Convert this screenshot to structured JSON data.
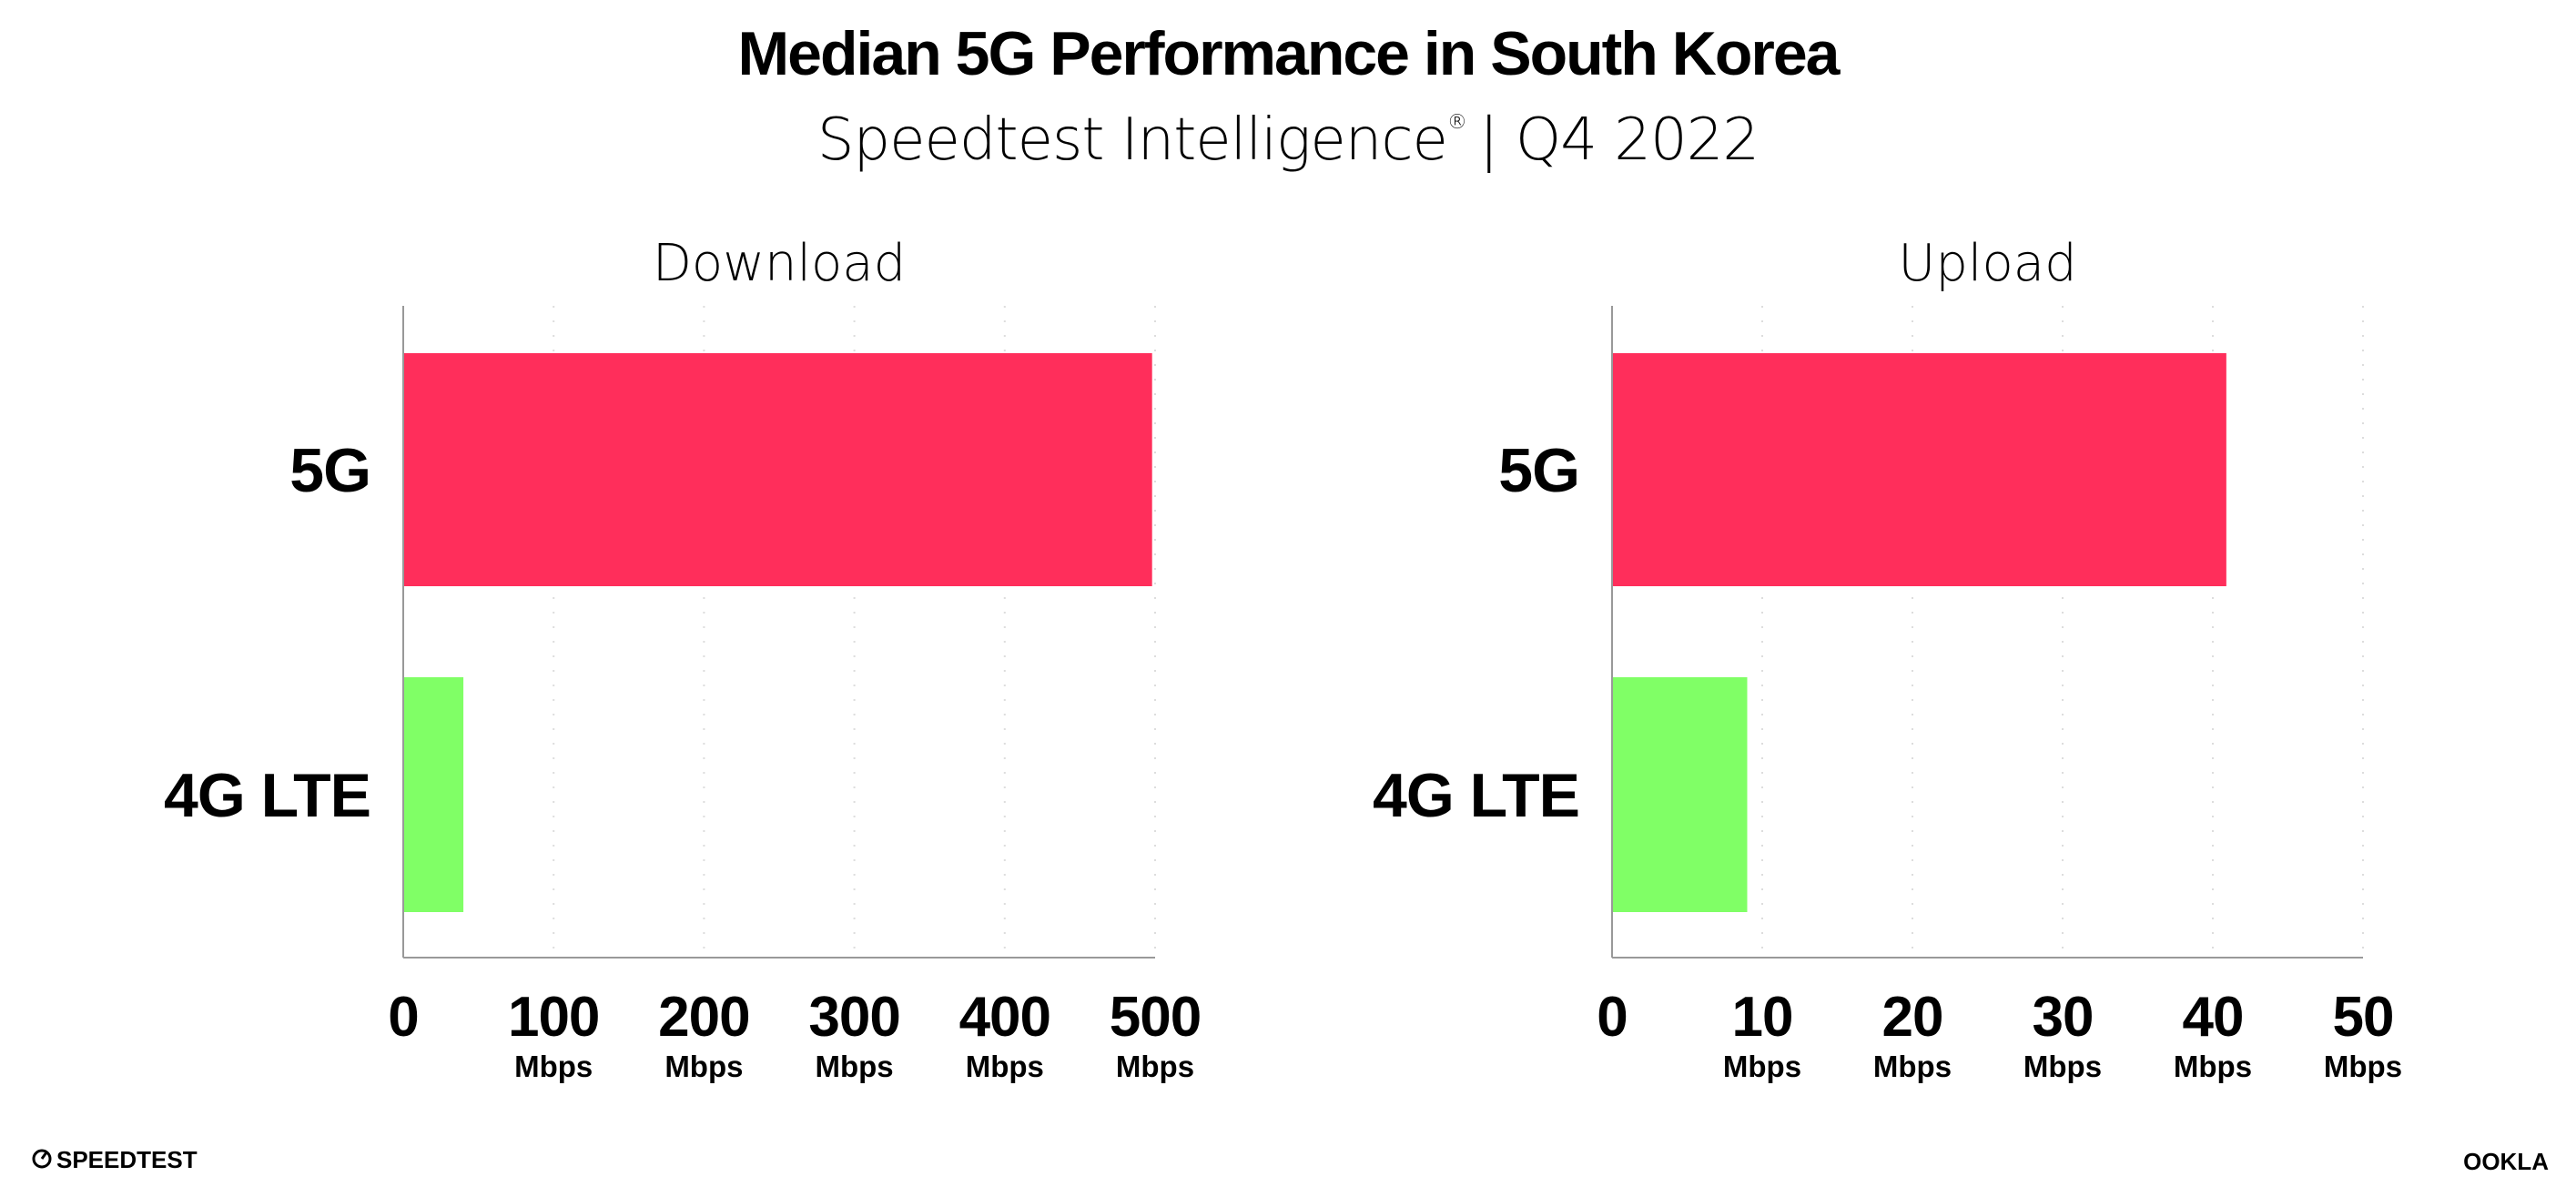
{
  "title": "Median 5G Performance in South Korea",
  "subtitle": "Speedtest Intelligence",
  "subtitle_mark": "®",
  "subtitle_period": "| Q4 2022",
  "colors": {
    "5G": "#ff2e5b",
    "4G LTE": "#80ff66",
    "axis": "#999999",
    "grid": "#dddddd"
  },
  "chart_data": [
    {
      "type": "bar",
      "orientation": "horizontal",
      "title": "Download",
      "categories": [
        "5G",
        "4G LTE"
      ],
      "values": [
        498,
        40
      ],
      "xlim": [
        0,
        500
      ],
      "ticks": [
        "0",
        "100",
        "200",
        "300",
        "400",
        "500"
      ],
      "tick_unit": "Mbps",
      "grid": true
    },
    {
      "type": "bar",
      "orientation": "horizontal",
      "title": "Upload",
      "categories": [
        "5G",
        "4G LTE"
      ],
      "values": [
        40.9,
        9.0
      ],
      "xlim": [
        0,
        50
      ],
      "ticks": [
        "0",
        "10",
        "20",
        "30",
        "40",
        "50"
      ],
      "tick_unit": "Mbps",
      "grid": true
    }
  ],
  "footer": {
    "left_logo": "SPEEDTEST",
    "right_logo": "OOKLA"
  }
}
